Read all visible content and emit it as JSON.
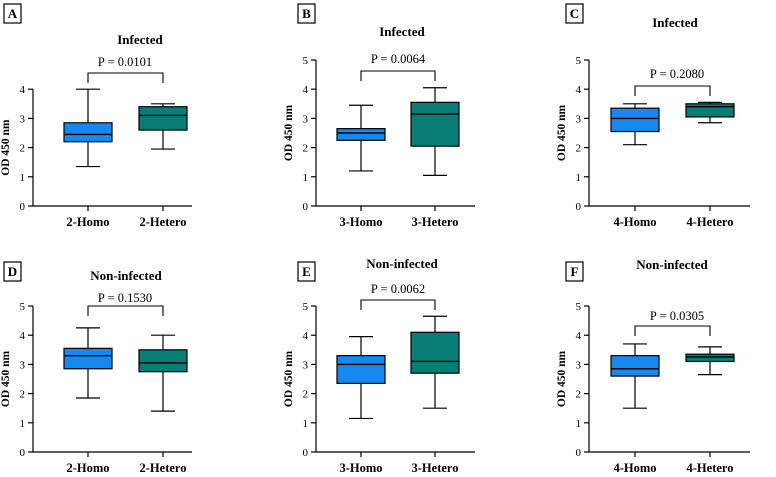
{
  "colors": {
    "homo": "#1589f0",
    "hetero": "#087d76",
    "stroke": "#000000"
  },
  "chart_data": [
    {
      "type": "box",
      "panel": "A",
      "title": "Infected",
      "ylabel": "OD 450 nm",
      "ylim": [
        0,
        4
      ],
      "yticks": [
        "0",
        "1",
        "2",
        "3",
        "4"
      ],
      "p_value": "P = 0.0101",
      "categories": [
        "2-Homo",
        "2-Hetero"
      ],
      "boxes": [
        {
          "min": 1.35,
          "q1": 2.2,
          "median": 2.45,
          "q3": 2.85,
          "max": 4.0
        },
        {
          "min": 1.95,
          "q1": 2.6,
          "median": 3.1,
          "q3": 3.4,
          "max": 3.5
        }
      ]
    },
    {
      "type": "box",
      "panel": "B",
      "title": "Infected",
      "ylabel": "OD 450 nm",
      "ylim": [
        0,
        5
      ],
      "yticks": [
        "0",
        "1",
        "2",
        "3",
        "4",
        "5"
      ],
      "p_value": "P = 0.0064",
      "categories": [
        "3-Homo",
        "3-Hetero"
      ],
      "boxes": [
        {
          "min": 1.2,
          "q1": 2.25,
          "median": 2.5,
          "q3": 2.65,
          "max": 3.45
        },
        {
          "min": 1.05,
          "q1": 2.05,
          "median": 3.15,
          "q3": 3.55,
          "max": 4.05
        }
      ]
    },
    {
      "type": "box",
      "panel": "C",
      "title": "Infected",
      "ylabel": "OD 450 nm",
      "ylim": [
        0,
        5
      ],
      "yticks": [
        "0",
        "1",
        "2",
        "3",
        "4",
        "5"
      ],
      "p_value": "P = 0.2080",
      "categories": [
        "4-Homo",
        "4-Hetero"
      ],
      "boxes": [
        {
          "min": 2.1,
          "q1": 2.55,
          "median": 3.0,
          "q3": 3.35,
          "max": 3.5
        },
        {
          "min": 2.85,
          "q1": 3.05,
          "median": 3.4,
          "q3": 3.5,
          "max": 3.55
        }
      ]
    },
    {
      "type": "box",
      "panel": "D",
      "title": "Non-infected",
      "ylabel": "OD 450 nm",
      "ylim": [
        0,
        5
      ],
      "yticks": [
        "0",
        "1",
        "2",
        "3",
        "4",
        "5"
      ],
      "p_value": "P = 0.1530",
      "categories": [
        "2-Homo",
        "2-Hetero"
      ],
      "boxes": [
        {
          "min": 1.85,
          "q1": 2.85,
          "median": 3.3,
          "q3": 3.55,
          "max": 4.25
        },
        {
          "min": 1.4,
          "q1": 2.75,
          "median": 3.05,
          "q3": 3.5,
          "max": 4.0
        }
      ]
    },
    {
      "type": "box",
      "panel": "E",
      "title": "Non-infected",
      "ylabel": "OD 450 nm",
      "ylim": [
        0,
        5
      ],
      "yticks": [
        "0",
        "1",
        "2",
        "3",
        "4",
        "5"
      ],
      "p_value": "P = 0.0062",
      "categories": [
        "3-Homo",
        "3-Hetero"
      ],
      "boxes": [
        {
          "min": 1.15,
          "q1": 2.35,
          "median": 3.0,
          "q3": 3.3,
          "max": 3.95
        },
        {
          "min": 1.5,
          "q1": 2.7,
          "median": 3.1,
          "q3": 4.1,
          "max": 4.65
        }
      ]
    },
    {
      "type": "box",
      "panel": "F",
      "title": "Non-infected",
      "ylabel": "OD 450 nm",
      "ylim": [
        0,
        5
      ],
      "yticks": [
        "0",
        "1",
        "2",
        "3",
        "4",
        "5"
      ],
      "p_value": "P = 0.0305",
      "categories": [
        "4-Homo",
        "4-Hetero"
      ],
      "boxes": [
        {
          "min": 1.5,
          "q1": 2.6,
          "median": 2.85,
          "q3": 3.3,
          "max": 3.7
        },
        {
          "min": 2.65,
          "q1": 3.1,
          "median": 3.25,
          "q3": 3.35,
          "max": 3.6
        }
      ]
    }
  ]
}
